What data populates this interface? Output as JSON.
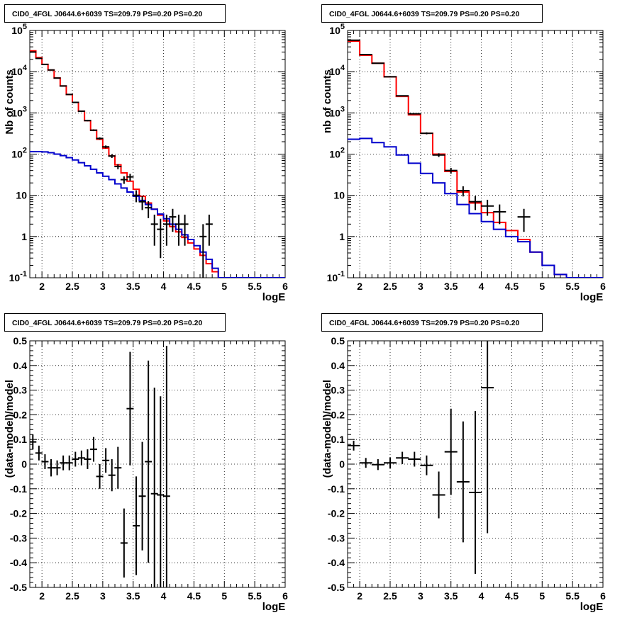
{
  "figure": {
    "title_text": "CID0_4FGL J0644.6+6039 TS=209.79 PS=0.20 PS=0.20"
  },
  "colors": {
    "data": "#000000",
    "total_model": "#ff0000",
    "component_model": "#0000cc",
    "grid": "#000000"
  },
  "chart_data": [
    {
      "type": "line",
      "title": "CID0_4FGL J0644.6+6039 TS=209.79 PS=0.20 PS=0.20",
      "xlabel": "logE",
      "ylabel": "Nb of counts",
      "xlim": [
        1.8,
        6.0
      ],
      "ylim": [
        0.1,
        100000
      ],
      "yscale": "log",
      "grid": true,
      "xticks": [
        "2",
        "2.5",
        "3",
        "3.5",
        "4",
        "4.5",
        "5",
        "5.5",
        "6"
      ],
      "yticks": [
        "10^-1",
        "1",
        "10",
        "10^2",
        "10^3",
        "10^4",
        "10^5"
      ],
      "bin_edges": [
        1.8,
        1.9,
        2.0,
        2.1,
        2.2,
        2.3,
        2.4,
        2.5,
        2.6,
        2.7,
        2.8,
        2.9,
        3.0,
        3.1,
        3.2,
        3.3,
        3.4,
        3.5,
        3.6,
        3.7,
        3.8,
        3.9,
        4.0,
        4.1,
        4.2,
        4.3,
        4.4,
        4.5,
        4.6,
        4.7,
        4.8,
        4.9,
        5.0,
        5.1,
        5.2,
        5.3,
        5.4,
        5.5,
        5.6,
        5.7,
        5.8,
        5.9,
        6.0
      ],
      "series": [
        {
          "style": "step",
          "color": "#ff0000",
          "values": [
            32000,
            22000,
            15000,
            11000,
            7000,
            4500,
            2800,
            1800,
            1100,
            650,
            380,
            230,
            140,
            90,
            55,
            35,
            22,
            14,
            9.5,
            6.5,
            4.6,
            3.3,
            2.4,
            1.75,
            1.3,
            0.95,
            0.7,
            0.5,
            0.35,
            0.22,
            0.14,
            0.1,
            0.1,
            0.1,
            0.1,
            0.1,
            0.1,
            0.1,
            0.1,
            0.1,
            0.1,
            0.1
          ]
        },
        {
          "style": "step",
          "color": "#0000cc",
          "values": [
            115,
            115,
            113,
            108,
            100,
            92,
            82,
            72,
            62,
            52,
            43,
            35,
            29,
            24,
            19,
            15,
            12,
            9.5,
            7.5,
            6,
            4.6,
            3.5,
            2.7,
            2.0,
            1.5,
            1.1,
            0.85,
            0.6,
            0.42,
            0.28,
            0.17,
            0.1,
            0.1,
            0.1,
            0.1,
            0.1,
            0.1,
            0.1,
            0.1,
            0.1,
            0.1,
            0.1
          ]
        },
        {
          "style": "points",
          "color": "#000000",
          "x": [
            1.85,
            1.95,
            2.05,
            2.15,
            2.25,
            2.35,
            2.45,
            2.55,
            2.65,
            2.75,
            2.85,
            2.95,
            3.05,
            3.15,
            3.25,
            3.35,
            3.45,
            3.55,
            3.65,
            3.75,
            3.85,
            3.95,
            4.05,
            4.15,
            4.25,
            4.35,
            4.65,
            4.75
          ],
          "y": [
            30000,
            21000,
            15000,
            11000,
            7000,
            4500,
            2800,
            1800,
            1100,
            650,
            380,
            240,
            150,
            90,
            50,
            24,
            28,
            10,
            7,
            5,
            2,
            1.5,
            2,
            3,
            2,
            2,
            1,
            2
          ],
          "yerr": [
            170,
            145,
            120,
            105,
            84,
            67,
            53,
            42,
            33,
            25,
            19,
            15,
            12,
            9.5,
            7,
            5,
            5.3,
            3.2,
            2.6,
            2.2,
            1.4,
            1.2,
            1.4,
            1.7,
            1.4,
            1.4,
            1,
            1.4
          ]
        }
      ]
    },
    {
      "type": "line",
      "title": "CID0_4FGL J0644.6+6039 TS=209.79 PS=0.20 PS=0.20",
      "xlabel": "logE",
      "ylabel": "nb of counts",
      "xlim": [
        1.8,
        6.0
      ],
      "ylim": [
        0.1,
        100000
      ],
      "yscale": "log",
      "grid": true,
      "xticks": [
        "2",
        "2.5",
        "3",
        "3.5",
        "4",
        "4.5",
        "5",
        "5.5",
        "6"
      ],
      "yticks": [
        "10^-1",
        "1",
        "10",
        "10^2",
        "10^3",
        "10^4",
        "10^5"
      ],
      "bin_edges": [
        1.8,
        2.0,
        2.2,
        2.4,
        2.6,
        2.8,
        3.0,
        3.2,
        3.4,
        3.6,
        3.8,
        4.0,
        4.2,
        4.4,
        4.6,
        4.8,
        5.0,
        5.2,
        5.4,
        5.6,
        5.8,
        6.0
      ],
      "series": [
        {
          "style": "step",
          "color": "#ff0000",
          "values": [
            55000,
            25000,
            16000,
            7500,
            2500,
            900,
            320,
            100,
            38,
            12,
            6.5,
            3.8,
            2.2,
            1.4,
            0.85,
            0.42,
            0.2,
            0.12,
            0.1,
            0.1,
            0.1
          ]
        },
        {
          "style": "step",
          "color": "#0000cc",
          "values": [
            230,
            240,
            190,
            150,
            95,
            60,
            34,
            20,
            11,
            6,
            3.6,
            2.3,
            1.5,
            1.0,
            0.75,
            0.42,
            0.2,
            0.12,
            0.1,
            0.1,
            0.1
          ]
        },
        {
          "style": "points",
          "color": "#000000",
          "x": [
            1.9,
            2.1,
            2.3,
            2.5,
            2.7,
            2.9,
            3.1,
            3.3,
            3.5,
            3.7,
            3.9,
            4.1,
            4.3,
            4.7
          ],
          "y": [
            58000,
            26000,
            16000,
            7500,
            2600,
            950,
            320,
            95,
            40,
            13,
            7,
            5.5,
            4,
            3
          ],
          "yerr": [
            240,
            160,
            126,
            87,
            51,
            31,
            18,
            9.7,
            6.3,
            3.6,
            2.6,
            2.3,
            2,
            1.7
          ]
        }
      ]
    },
    {
      "type": "scatter",
      "title": "CID0_4FGL J0644.6+6039 TS=209.79 PS=0.20 PS=0.20",
      "xlabel": "logE",
      "ylabel": "(data-model)/model",
      "xlim": [
        1.8,
        6.0
      ],
      "ylim": [
        -0.5,
        0.5
      ],
      "grid": true,
      "xticks": [
        "2",
        "2.5",
        "3",
        "3.5",
        "4",
        "4.5",
        "5",
        "5.5",
        "6"
      ],
      "yticks": [
        "-0.5",
        "-0.4",
        "-0.3",
        "-0.2",
        "-0.1",
        "0",
        "0.1",
        "0.2",
        "0.3",
        "0.4",
        "0.5"
      ],
      "series": [
        {
          "style": "points",
          "color": "#000000",
          "x": [
            1.85,
            1.95,
            2.05,
            2.15,
            2.25,
            2.35,
            2.45,
            2.55,
            2.65,
            2.75,
            2.85,
            2.95,
            3.05,
            3.15,
            3.25,
            3.35,
            3.45,
            3.55,
            3.65,
            3.75,
            3.85,
            3.95,
            4.05
          ],
          "y": [
            0.09,
            0.045,
            0.01,
            -0.015,
            -0.015,
            0.005,
            0.005,
            0.02,
            0.025,
            0.02,
            0.06,
            -0.05,
            0.015,
            -0.045,
            -0.015,
            -0.32,
            0.225,
            -0.25,
            -0.13,
            0.01,
            -0.12,
            -0.125,
            -0.13
          ],
          "yerr": [
            0.03,
            0.03,
            0.03,
            0.035,
            0.03,
            0.03,
            0.03,
            0.03,
            0.03,
            0.04,
            0.05,
            0.05,
            0.05,
            0.065,
            0.085,
            0.14,
            0.23,
            0.2,
            0.22,
            0.41,
            0.43,
            0.4,
            0.61
          ]
        }
      ]
    },
    {
      "type": "scatter",
      "title": "CID0_4FGL J0644.6+6039 TS=209.79 PS=0.20 PS=0.20",
      "xlabel": "logE",
      "ylabel": "(data-model)/model",
      "xlim": [
        1.8,
        6.0
      ],
      "ylim": [
        -0.5,
        0.5
      ],
      "grid": true,
      "xticks": [
        "2",
        "2.5",
        "3",
        "3.5",
        "4",
        "4.5",
        "5",
        "5.5",
        "6"
      ],
      "yticks": [
        "-0.5",
        "-0.4",
        "-0.3",
        "-0.2",
        "-0.1",
        "0",
        "0.1",
        "0.2",
        "0.3",
        "0.4",
        "0.5"
      ],
      "series": [
        {
          "style": "points",
          "color": "#000000",
          "x": [
            1.9,
            2.1,
            2.3,
            2.5,
            2.7,
            2.9,
            3.1,
            3.3,
            3.5,
            3.7,
            3.9,
            4.1
          ],
          "y": [
            0.075,
            0.005,
            -0.002,
            0.005,
            0.025,
            0.02,
            -0.005,
            -0.125,
            0.05,
            -0.072,
            -0.115,
            0.31
          ],
          "yerr": [
            0.02,
            0.02,
            0.022,
            0.022,
            0.025,
            0.03,
            0.04,
            0.095,
            0.175,
            0.245,
            0.33,
            0.59
          ]
        }
      ]
    }
  ]
}
